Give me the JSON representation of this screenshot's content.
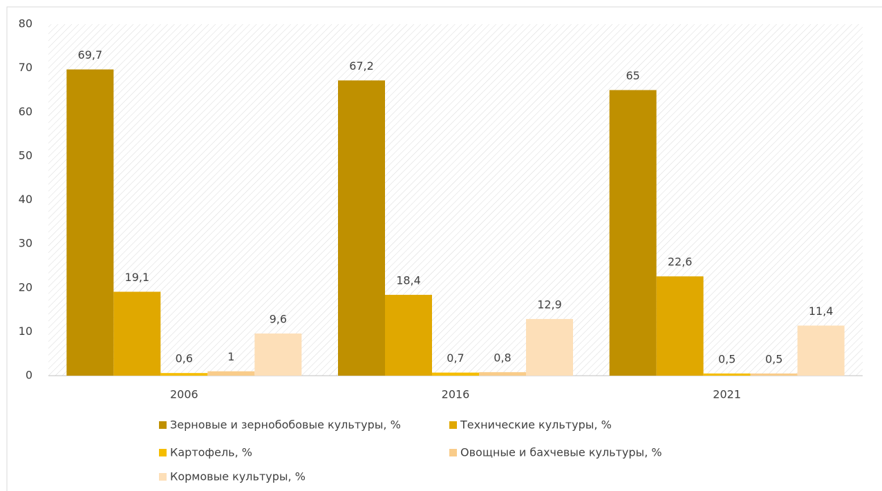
{
  "chart_data": {
    "type": "bar",
    "categories": [
      "2006",
      "2016",
      "2021"
    ],
    "series": [
      {
        "name": "Зерновые и зернобобовые культуры, %",
        "color": "#bf9000",
        "values": [
          69.7,
          67.2,
          65
        ],
        "value_labels": [
          "69,7",
          "67,2",
          "65"
        ]
      },
      {
        "name": "Технические культуры, %",
        "color": "#e0a800",
        "values": [
          19.1,
          18.4,
          22.6
        ],
        "value_labels": [
          "19,1",
          "18,4",
          "22,6"
        ]
      },
      {
        "name": "Картофель, %",
        "color": "#f5bd00",
        "values": [
          0.6,
          0.7,
          0.5
        ],
        "value_labels": [
          "0,6",
          "0,7",
          "0,5"
        ]
      },
      {
        "name": "Овощные и бахчевые культуры, %",
        "color": "#f9cc8a",
        "values": [
          1,
          0.8,
          0.5
        ],
        "value_labels": [
          "1",
          "0,8",
          "0,5"
        ]
      },
      {
        "name": "Кормовые культуры, %",
        "color": "#fddfb8",
        "values": [
          9.6,
          12.9,
          11.4
        ],
        "value_labels": [
          "9,6",
          "12,9",
          "11,4"
        ]
      }
    ],
    "ylim": [
      0,
      80
    ],
    "yticks": [
      0,
      10,
      20,
      30,
      40,
      50,
      60,
      70,
      80
    ],
    "grid": false,
    "legend": "bottom"
  }
}
